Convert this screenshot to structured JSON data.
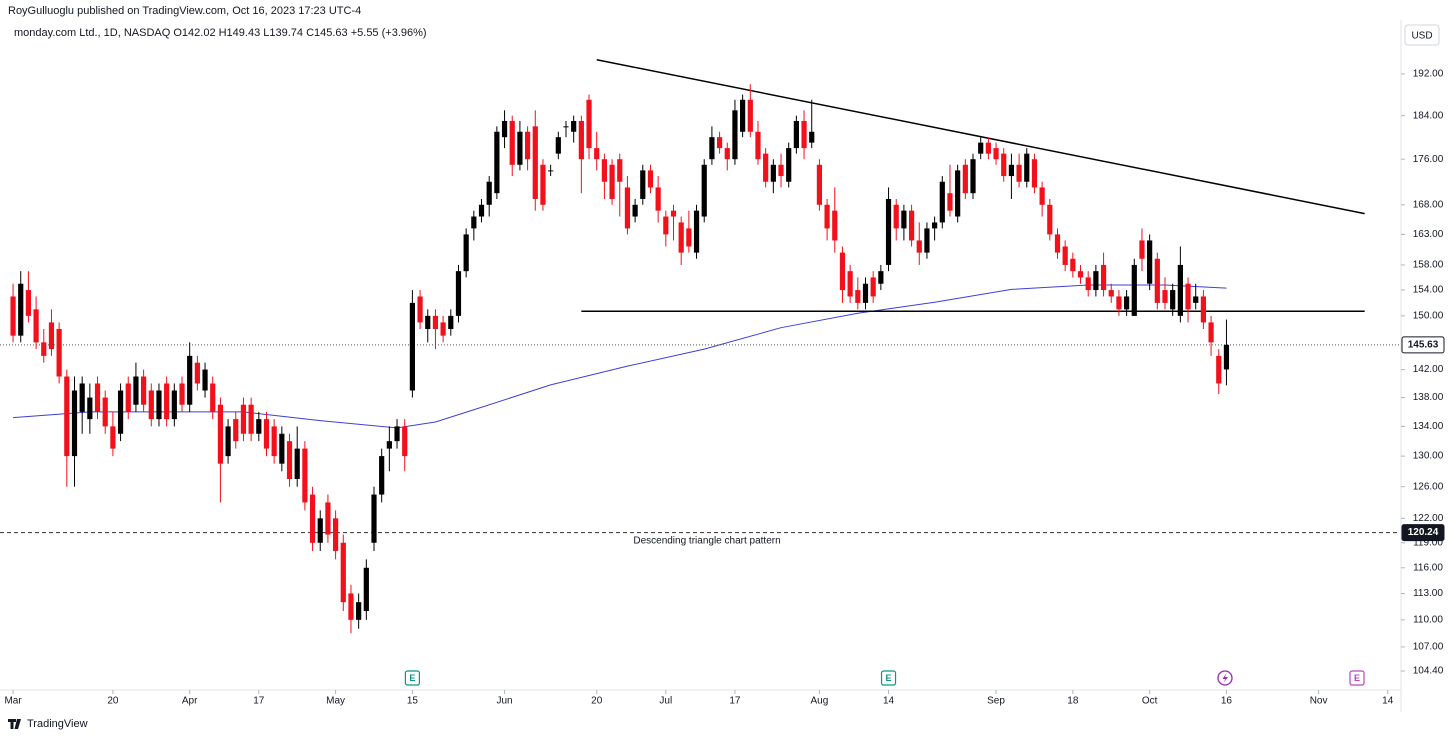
{
  "chart_data": {
    "type": "candlestick",
    "header": "RoyGulluoglu published on TradingView.com, Oct 16, 2023 17:23 UTC-4",
    "title": "monday.com Ltd., 1D, NASDAQ  O142.02  H149.43  L139.74  C145.63  +5.55 (+3.96%)",
    "currency": "USD",
    "brand": "TradingView",
    "annotation": "Descending triangle chart pattern",
    "up_color": "#000000",
    "down_color": "#f2101a",
    "ma_color": "#3f3fd6",
    "log_scale": true,
    "ylim": [
      102.4,
      200.8
    ],
    "xlim": [
      -1.7,
      180.6
    ],
    "yticks": [
      {
        "value": 192,
        "label": "192.00"
      },
      {
        "value": 184,
        "label": "184.00"
      },
      {
        "value": 176,
        "label": "176.00"
      },
      {
        "value": 168,
        "label": "168.00"
      },
      {
        "value": 163,
        "label": "163.00"
      },
      {
        "value": 158,
        "label": "158.00"
      },
      {
        "value": 154,
        "label": "154.00"
      },
      {
        "value": 150,
        "label": "150.00"
      },
      {
        "value": 142,
        "label": "142.00"
      },
      {
        "value": 138,
        "label": "138.00"
      },
      {
        "value": 134,
        "label": "134.00"
      },
      {
        "value": 130,
        "label": "130.00"
      },
      {
        "value": 126,
        "label": "126.00"
      },
      {
        "value": 122,
        "label": "122.00"
      },
      {
        "value": 119,
        "label": "119.00"
      },
      {
        "value": 116,
        "label": "116.00"
      },
      {
        "value": 113,
        "label": "113.00"
      },
      {
        "value": 110,
        "label": "110.00"
      },
      {
        "value": 107,
        "label": "107.00"
      },
      {
        "value": 104.4,
        "label": "104.40"
      }
    ],
    "xticks": [
      {
        "value": 0,
        "label": "Mar"
      },
      {
        "value": 13,
        "label": "20"
      },
      {
        "value": 23,
        "label": "Apr"
      },
      {
        "value": 32,
        "label": "17"
      },
      {
        "value": 42,
        "label": "May"
      },
      {
        "value": 52,
        "label": "15"
      },
      {
        "value": 64,
        "label": "Jun"
      },
      {
        "value": 76,
        "label": "20"
      },
      {
        "value": 85,
        "label": "Jul"
      },
      {
        "value": 94,
        "label": "17"
      },
      {
        "value": 105,
        "label": "Aug"
      },
      {
        "value": 114,
        "label": "14"
      },
      {
        "value": 128,
        "label": "Sep"
      },
      {
        "value": 138,
        "label": "18"
      },
      {
        "value": 148,
        "label": "Oct"
      },
      {
        "value": 158,
        "label": "16"
      },
      {
        "value": 170,
        "label": "Nov"
      },
      {
        "value": 179,
        "label": "14"
      }
    ],
    "ohlc": [
      [
        153,
        155,
        146,
        147
      ],
      [
        147,
        157,
        146,
        155
      ],
      [
        154,
        157,
        149,
        150
      ],
      [
        151,
        153,
        145,
        146
      ],
      [
        146,
        148,
        143,
        144
      ],
      [
        149,
        151,
        144,
        145
      ],
      [
        148,
        149,
        140,
        141
      ],
      [
        141,
        142,
        126,
        130
      ],
      [
        130,
        141,
        126,
        139
      ],
      [
        136,
        141,
        133,
        140
      ],
      [
        135,
        140,
        133,
        138
      ],
      [
        140,
        141,
        135,
        136
      ],
      [
        138,
        139,
        133,
        134
      ],
      [
        134,
        136,
        130,
        131
      ],
      [
        133,
        140,
        132,
        139
      ],
      [
        140,
        141,
        135,
        136
      ],
      [
        137,
        143,
        136,
        141
      ],
      [
        141,
        142,
        136,
        137
      ],
      [
        139,
        140,
        134,
        135
      ],
      [
        135,
        140,
        134,
        139
      ],
      [
        140,
        141,
        134,
        135
      ],
      [
        135,
        140,
        134,
        139
      ],
      [
        140,
        141,
        136,
        137
      ],
      [
        137,
        146,
        136,
        144
      ],
      [
        143,
        144,
        139,
        140
      ],
      [
        139,
        143,
        138,
        142
      ],
      [
        140,
        141,
        135,
        136
      ],
      [
        137,
        138,
        124,
        129
      ],
      [
        130,
        135,
        129,
        134
      ],
      [
        135,
        136,
        131,
        132
      ],
      [
        137,
        138,
        132,
        133
      ],
      [
        137,
        138,
        132,
        133
      ],
      [
        133,
        136,
        132,
        135
      ],
      [
        135,
        136,
        130,
        131
      ],
      [
        134,
        135,
        129,
        130
      ],
      [
        129,
        134,
        128,
        133
      ],
      [
        132,
        133,
        126,
        127
      ],
      [
        127,
        134,
        126,
        131
      ],
      [
        131,
        132,
        123,
        124
      ],
      [
        125,
        126,
        118,
        119
      ],
      [
        119,
        123,
        118,
        122
      ],
      [
        124,
        125,
        119,
        120
      ],
      [
        122,
        123,
        117,
        118
      ],
      [
        119,
        120,
        111,
        112
      ],
      [
        113,
        114,
        108.5,
        110
      ],
      [
        110,
        113,
        109,
        112
      ],
      [
        111,
        117,
        110,
        116
      ],
      [
        119,
        126,
        118,
        125
      ],
      [
        125,
        131,
        124,
        130
      ],
      [
        131,
        134,
        128,
        132
      ],
      [
        132,
        135,
        131,
        134
      ],
      [
        134,
        135,
        128,
        130
      ],
      [
        139,
        154,
        138,
        152
      ],
      [
        153,
        154,
        148,
        149
      ],
      [
        148,
        151,
        146,
        150
      ],
      [
        150,
        151,
        145,
        148
      ],
      [
        149,
        150,
        146,
        147
      ],
      [
        148,
        151,
        147,
        150
      ],
      [
        150,
        158,
        149,
        157
      ],
      [
        157,
        164,
        156,
        163
      ],
      [
        164,
        167,
        162,
        166
      ],
      [
        166,
        169,
        165,
        168
      ],
      [
        168,
        173,
        166,
        172
      ],
      [
        170,
        182,
        169,
        181
      ],
      [
        180,
        185,
        178,
        183
      ],
      [
        183,
        184,
        173,
        175
      ],
      [
        175,
        183,
        174,
        181
      ],
      [
        181,
        182,
        174,
        176
      ],
      [
        182,
        185,
        167,
        169
      ],
      [
        175,
        176,
        167,
        168
      ],
      [
        174,
        175,
        173,
        174
      ],
      [
        177,
        181,
        176,
        180
      ],
      [
        182,
        183,
        180,
        182
      ],
      [
        181,
        184,
        179,
        183
      ],
      [
        183,
        184,
        170,
        176
      ],
      [
        187,
        188,
        176,
        178
      ],
      [
        178,
        181,
        174,
        176
      ],
      [
        176,
        177,
        169,
        172
      ],
      [
        175,
        176,
        168,
        169
      ],
      [
        176,
        177,
        166,
        172
      ],
      [
        171,
        173,
        163,
        164
      ],
      [
        166,
        169,
        165,
        168
      ],
      [
        169,
        175,
        168,
        174
      ],
      [
        174,
        175,
        170,
        171
      ],
      [
        171,
        173,
        165,
        167
      ],
      [
        166,
        167,
        161,
        163
      ],
      [
        167,
        168,
        162,
        166
      ],
      [
        165,
        166,
        158,
        160
      ],
      [
        164,
        167,
        160,
        161
      ],
      [
        160,
        168,
        159,
        167
      ],
      [
        166,
        176,
        165,
        175
      ],
      [
        176,
        182,
        175,
        180
      ],
      [
        180,
        181,
        177,
        178
      ],
      [
        178,
        179,
        174,
        176
      ],
      [
        176,
        187,
        175,
        185
      ],
      [
        181,
        188,
        180,
        187
      ],
      [
        187,
        190,
        180,
        181
      ],
      [
        181,
        183,
        175,
        176
      ],
      [
        177,
        178,
        171,
        172
      ],
      [
        172,
        176,
        170,
        175
      ],
      [
        175,
        177,
        171,
        173
      ],
      [
        172,
        179,
        171,
        178
      ],
      [
        178,
        184,
        177,
        183
      ],
      [
        183,
        185,
        176,
        178
      ],
      [
        179,
        187,
        178,
        181
      ],
      [
        175,
        176,
        167,
        168
      ],
      [
        168,
        169,
        162,
        164
      ],
      [
        167,
        171,
        160,
        162
      ],
      [
        160,
        161,
        152,
        154
      ],
      [
        157,
        158,
        152,
        153
      ],
      [
        154,
        156,
        151,
        152
      ],
      [
        152,
        156,
        151,
        155
      ],
      [
        156,
        157,
        152,
        153
      ],
      [
        155,
        158,
        154,
        157
      ],
      [
        158,
        171,
        157,
        169
      ],
      [
        168,
        169,
        162,
        164
      ],
      [
        164,
        168,
        162,
        167
      ],
      [
        167,
        168,
        161,
        162
      ],
      [
        162,
        165,
        158,
        160
      ],
      [
        160,
        165,
        159,
        164
      ],
      [
        164,
        166,
        162,
        165
      ],
      [
        165,
        173,
        164,
        172
      ],
      [
        170,
        175,
        166,
        167
      ],
      [
        166,
        175,
        165,
        174
      ],
      [
        175,
        176,
        169,
        170
      ],
      [
        170,
        177,
        169,
        176
      ],
      [
        177,
        180,
        176,
        179
      ],
      [
        179,
        180,
        176,
        177
      ],
      [
        178,
        179,
        175,
        176
      ],
      [
        177,
        178,
        172,
        173
      ],
      [
        173,
        177,
        169,
        175
      ],
      [
        175,
        177,
        171,
        172
      ],
      [
        172,
        178,
        171,
        177
      ],
      [
        176,
        177,
        170,
        171
      ],
      [
        171,
        172,
        166,
        168
      ],
      [
        168,
        169,
        162,
        163
      ],
      [
        163,
        164,
        159,
        160
      ],
      [
        161,
        162,
        157,
        158
      ],
      [
        159,
        160,
        156,
        157
      ],
      [
        157,
        158,
        155,
        156
      ],
      [
        156,
        157,
        153,
        154
      ],
      [
        154,
        158,
        153,
        157
      ],
      [
        158,
        160,
        153,
        154
      ],
      [
        154,
        155,
        152,
        153
      ],
      [
        153,
        154,
        150,
        151
      ],
      [
        151,
        154,
        150,
        153
      ],
      [
        150,
        159,
        150,
        158
      ],
      [
        162,
        164,
        157,
        159
      ],
      [
        155,
        163,
        154,
        162
      ],
      [
        159,
        160,
        151,
        152
      ],
      [
        154,
        156,
        151,
        152
      ],
      [
        151,
        155,
        150,
        154
      ],
      [
        150,
        161,
        149,
        158
      ],
      [
        155,
        156,
        149,
        151
      ],
      [
        152,
        155,
        151,
        153
      ],
      [
        153,
        154,
        148,
        149
      ],
      [
        149,
        150,
        144,
        146
      ],
      [
        144,
        145,
        138.5,
        140
      ],
      [
        142.02,
        149.43,
        139.74,
        145.63
      ]
    ],
    "ma": {
      "x": [
        0,
        10,
        20,
        30,
        40,
        50,
        55,
        60,
        70,
        80,
        90,
        100,
        110,
        120,
        130,
        140,
        150,
        158
      ],
      "values": [
        135.2,
        136,
        136,
        136,
        134.8,
        133.8,
        134.6,
        136.3,
        139.8,
        142.5,
        145,
        148.2,
        150.4,
        152.1,
        154.1,
        154.8,
        154.8,
        154.3
      ]
    },
    "trend_lines": [
      {
        "x": [
          76,
          176
        ],
        "values": [
          194.8,
          166.5
        ]
      },
      {
        "x": [
          74,
          176
        ],
        "values": [
          150.7,
          150.7
        ]
      }
    ],
    "price_lines": [
      {
        "value": 145.63,
        "style": "dotted"
      },
      {
        "value": 120.24,
        "style": "dashed"
      }
    ],
    "events": [
      {
        "x": 52,
        "label": "E"
      },
      {
        "x": 114,
        "label": "E"
      },
      {
        "x": 175,
        "label": "E"
      }
    ]
  }
}
